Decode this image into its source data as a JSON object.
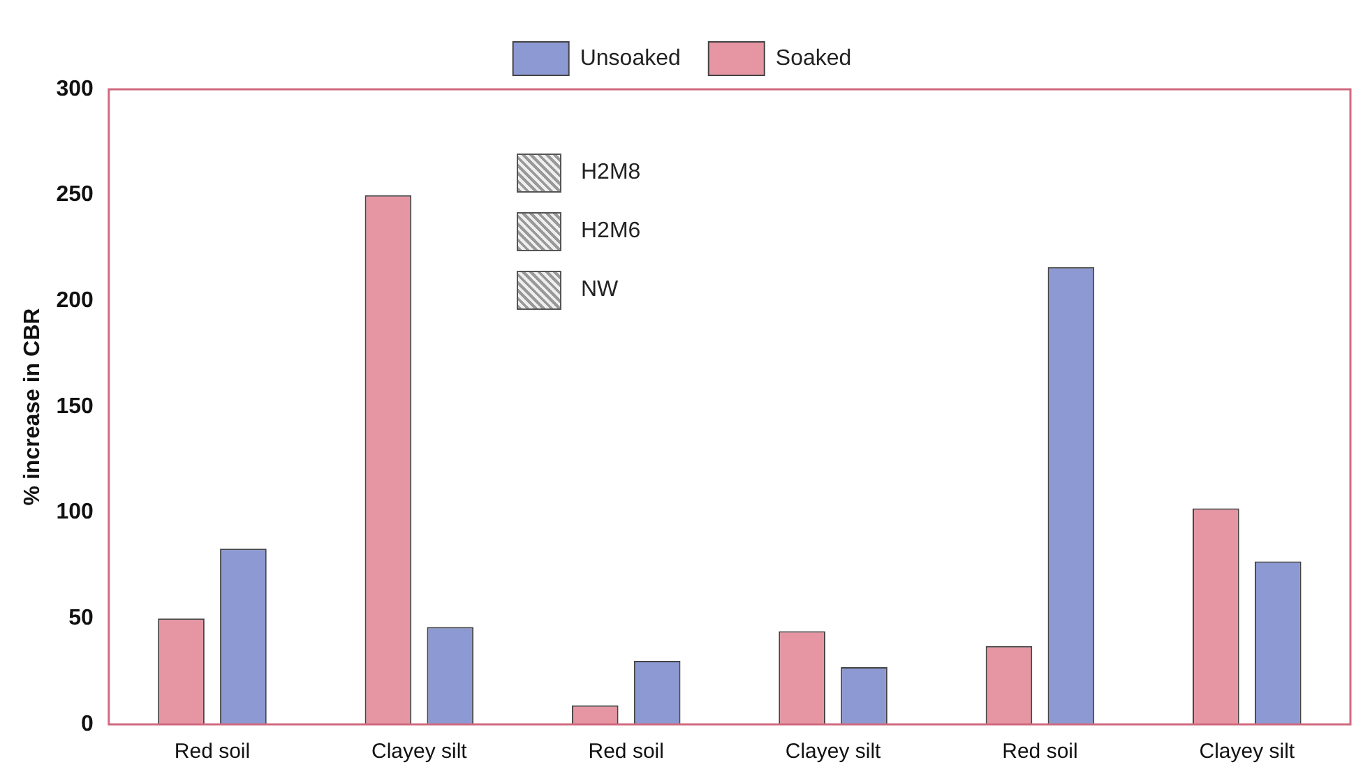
{
  "chart_data": {
    "type": "bar",
    "ylabel": "% increase in CBR",
    "categories": [
      "Red soil",
      "Clayey silt",
      "Red soil",
      "Clayey silt",
      "Red soil",
      "Clayey silt"
    ],
    "series": [
      {
        "name": "Soaked",
        "color": "#e07a8c",
        "values": [
          50,
          250,
          9,
          44,
          37,
          102
        ]
      },
      {
        "name": "Unsoaked",
        "color": "#6f7fc8",
        "values": [
          83,
          46,
          30,
          27,
          216,
          77
        ]
      }
    ],
    "ylim": [
      0,
      300
    ],
    "yticks": [
      0,
      50,
      100,
      150,
      200,
      250,
      300
    ],
    "grid": false,
    "legend": "top",
    "annotations": [
      "H2M8",
      "H2M6",
      "NW"
    ]
  }
}
